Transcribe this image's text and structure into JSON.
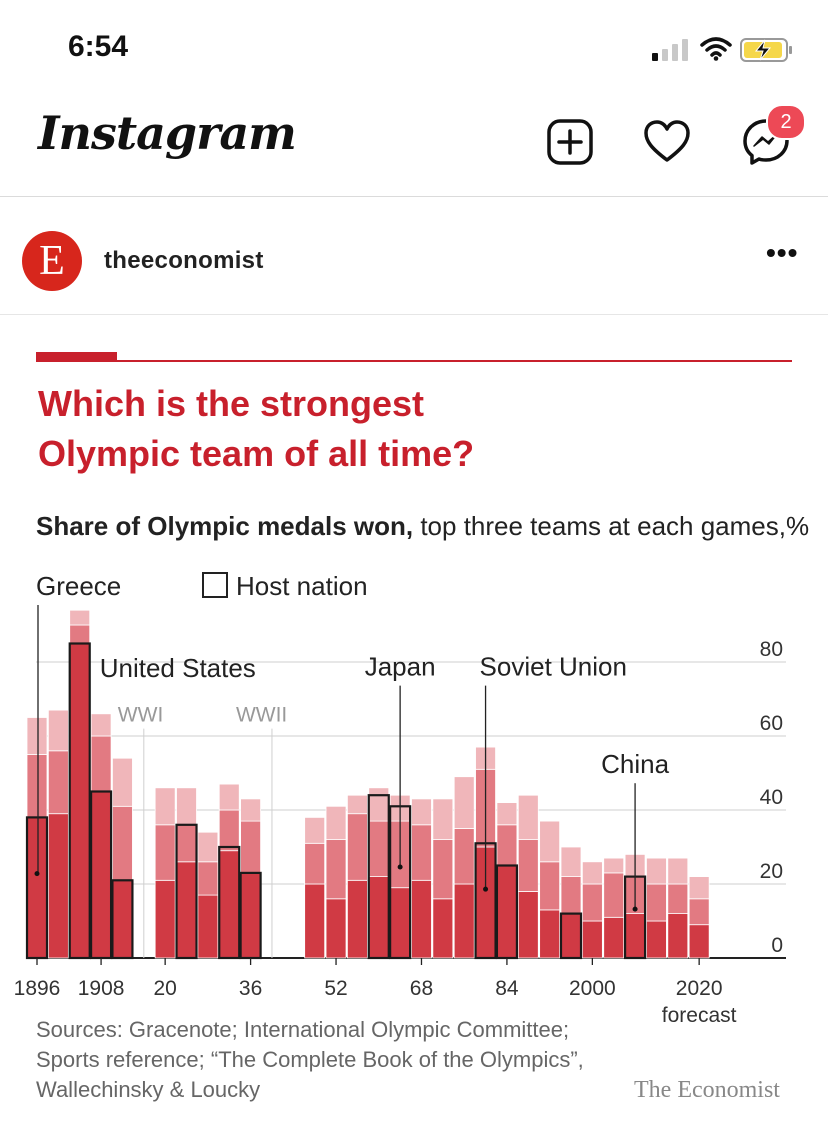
{
  "status_bar": {
    "time": "6:54"
  },
  "header": {
    "logo": "Instagram",
    "icons": [
      "new-post-icon",
      "heart-icon",
      "messenger-icon"
    ],
    "messages_badge": "2"
  },
  "post": {
    "avatar_letter": "E",
    "username": "theeconomist",
    "more": "•••"
  },
  "figure": {
    "headline_line1": "Which is the strongest",
    "headline_line2": "Olympic team of all time?",
    "subtitle_bold": "Share of Olympic medals won,",
    "subtitle_rest": " top three teams at each games,%",
    "legend_host": "Host nation",
    "sources_line1": "Sources: Gracenote; International Olympic Committee;",
    "sources_line2": "Sports reference; “The Complete Book of the Olympics”,",
    "sources_line3": "Wallechinsky & Loucky",
    "brand": "The Economist"
  },
  "colors": {
    "first": "#d03a44",
    "second": "#e27a82",
    "third": "#f0b6ba",
    "accent": "#c8202c"
  },
  "chart_data": {
    "type": "bar",
    "stacked": true,
    "ylim": [
      0,
      90
    ],
    "yticks": [
      0,
      20,
      40,
      60,
      80
    ],
    "xticks": [
      "1896",
      "1908",
      "20",
      "36",
      "52",
      "68",
      "84",
      "2000",
      "2020"
    ],
    "xtick_note": "forecast",
    "categories": [
      "1896",
      "1900",
      "1904",
      "1908",
      "1912",
      "1920",
      "1924",
      "1928",
      "1932",
      "1936",
      "1948",
      "1952",
      "1956",
      "1960",
      "1964",
      "1968",
      "1972",
      "1976",
      "1980",
      "1984",
      "1988",
      "1992",
      "1996",
      "2000",
      "2004",
      "2008",
      "2012",
      "2016",
      "2020"
    ],
    "series": [
      {
        "values": [
          38,
          39,
          85,
          45,
          21,
          21,
          26,
          17,
          29,
          23,
          20,
          16,
          21,
          22,
          19,
          21,
          16,
          20,
          30,
          25,
          18,
          13,
          12,
          10,
          11,
          12,
          10,
          12,
          9
        ]
      },
      {
        "values": [
          17,
          17,
          5,
          15,
          20,
          15,
          10,
          9,
          11,
          14,
          11,
          16,
          18,
          15,
          18,
          15,
          16,
          15,
          21,
          11,
          14,
          13,
          10,
          10,
          12,
          10,
          10,
          8,
          7
        ]
      },
      {
        "values": [
          10,
          11,
          4,
          6,
          13,
          10,
          10,
          8,
          7,
          6,
          7,
          9,
          5,
          9,
          7,
          7,
          11,
          14,
          6,
          6,
          12,
          11,
          8,
          6,
          4,
          6,
          7,
          7,
          6
        ]
      }
    ],
    "host_nation": [
      {
        "category": "1896",
        "value": 38
      },
      {
        "category": "1904",
        "value": 85
      },
      {
        "category": "1908",
        "value": 45
      },
      {
        "category": "1912",
        "value": 21
      },
      {
        "category": "1924",
        "value": 36
      },
      {
        "category": "1932",
        "value": 30
      },
      {
        "category": "1936",
        "value": 23
      },
      {
        "category": "1960",
        "value": 44
      },
      {
        "category": "1964",
        "value": 41
      },
      {
        "category": "1980",
        "value": 31
      },
      {
        "category": "1984",
        "value": 25
      },
      {
        "category": "1996",
        "value": 12
      },
      {
        "category": "2008",
        "value": 22
      }
    ],
    "annotations": [
      {
        "text": "Greece",
        "category": "1896"
      },
      {
        "text": "United States",
        "category": "1904"
      },
      {
        "text": "WWI",
        "category": "1916"
      },
      {
        "text": "WWII",
        "category": "1940"
      },
      {
        "text": "Japan",
        "category": "1964"
      },
      {
        "text": "Soviet Union",
        "category": "1980"
      },
      {
        "text": "China",
        "category": "2008"
      }
    ]
  }
}
